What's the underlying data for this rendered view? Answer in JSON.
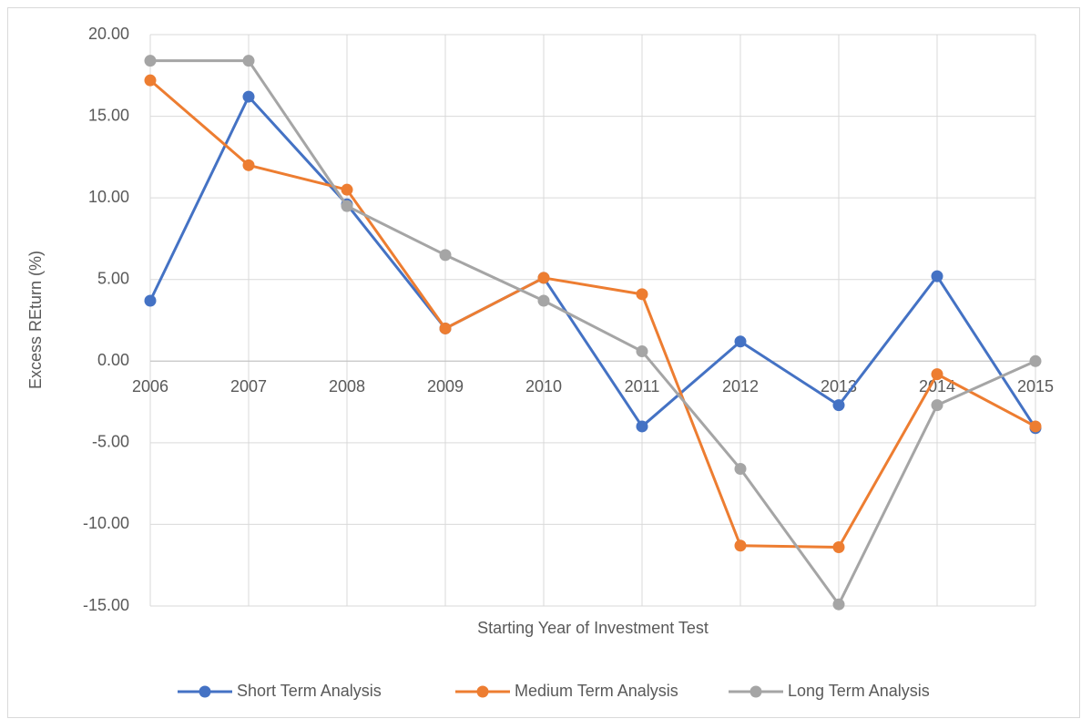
{
  "chart_data": {
    "type": "line",
    "x_label": "Starting Year of Investment Test",
    "y_label": "Excess REturn (%)",
    "categories": [
      "2006",
      "2007",
      "2008",
      "2009",
      "2010",
      "2011",
      "2012",
      "2013",
      "2014",
      "2015"
    ],
    "series": [
      {
        "name": "Short Term Analysis",
        "color": "#4472c4",
        "values": [
          3.7,
          16.2,
          9.6,
          2.0,
          5.1,
          -4.0,
          1.2,
          -2.7,
          5.2,
          -4.1
        ]
      },
      {
        "name": "Medium Term Analysis",
        "color": "#ed7d31",
        "values": [
          17.2,
          12.0,
          10.5,
          2.0,
          5.1,
          4.1,
          -11.3,
          -11.4,
          -0.8,
          -4.0
        ]
      },
      {
        "name": "Long Term Analysis",
        "color": "#a5a5a5",
        "values": [
          18.4,
          18.4,
          9.5,
          6.5,
          3.7,
          0.6,
          -6.6,
          -14.9,
          -2.7,
          0.0
        ]
      }
    ],
    "ylim": [
      -15,
      20
    ],
    "yticks": [
      {
        "value": -15,
        "label": "-15.00"
      },
      {
        "value": -10,
        "label": "-10.00"
      },
      {
        "value": -5,
        "label": "-5.00"
      },
      {
        "value": 0,
        "label": "0.00"
      },
      {
        "value": 5,
        "label": "5.00"
      },
      {
        "value": 10,
        "label": "10.00"
      },
      {
        "value": 15,
        "label": "15.00"
      },
      {
        "value": 20,
        "label": "20.00"
      }
    ],
    "grid": true,
    "legend": "bottom"
  }
}
